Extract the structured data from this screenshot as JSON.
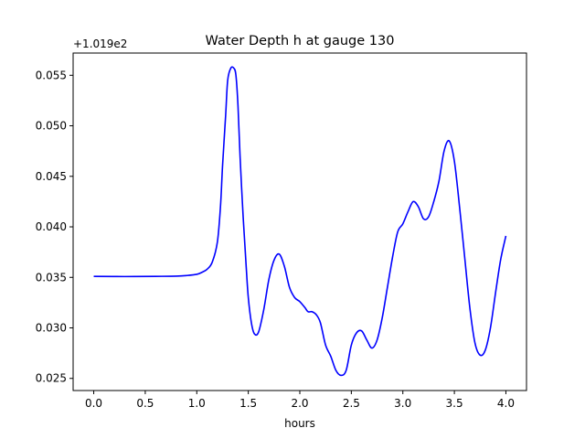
{
  "chart_data": {
    "type": "line",
    "title": "Water Depth h at gauge 130",
    "xlabel": "hours",
    "ylabel": "",
    "y_offset_label": "+1.019e2",
    "xlim": [
      -0.2,
      4.2
    ],
    "ylim": [
      0.0238,
      0.0572
    ],
    "xticks": [
      0.0,
      0.5,
      1.0,
      1.5,
      2.0,
      2.5,
      3.0,
      3.5,
      4.0
    ],
    "xtick_labels": [
      "0.0",
      "0.5",
      "1.0",
      "1.5",
      "2.0",
      "2.5",
      "3.0",
      "3.5",
      "4.0"
    ],
    "yticks": [
      0.025,
      0.03,
      0.035,
      0.04,
      0.045,
      0.05,
      0.055
    ],
    "ytick_labels": [
      "0.025",
      "0.030",
      "0.035",
      "0.040",
      "0.045",
      "0.050",
      "0.055"
    ],
    "grid": false,
    "series": [
      {
        "color": "#0000ff",
        "x": [
          0.0,
          0.3,
          0.6,
          0.8,
          0.9,
          1.0,
          1.05,
          1.1,
          1.15,
          1.2,
          1.23,
          1.25,
          1.28,
          1.3,
          1.33,
          1.36,
          1.38,
          1.4,
          1.42,
          1.45,
          1.48,
          1.5,
          1.53,
          1.56,
          1.6,
          1.65,
          1.7,
          1.75,
          1.8,
          1.85,
          1.9,
          1.95,
          2.0,
          2.05,
          2.08,
          2.12,
          2.16,
          2.2,
          2.25,
          2.3,
          2.35,
          2.4,
          2.45,
          2.5,
          2.55,
          2.6,
          2.65,
          2.7,
          2.75,
          2.8,
          2.85,
          2.9,
          2.95,
          3.0,
          3.05,
          3.1,
          3.15,
          3.2,
          3.25,
          3.3,
          3.35,
          3.4,
          3.45,
          3.5,
          3.55,
          3.6,
          3.65,
          3.7,
          3.75,
          3.8,
          3.85,
          3.9,
          3.95,
          4.0
        ],
        "y": [
          0.0351,
          0.03508,
          0.0351,
          0.03512,
          0.03518,
          0.0353,
          0.0355,
          0.0358,
          0.0365,
          0.0385,
          0.042,
          0.046,
          0.051,
          0.0545,
          0.0557,
          0.0557,
          0.055,
          0.052,
          0.047,
          0.041,
          0.036,
          0.033,
          0.0305,
          0.0294,
          0.0296,
          0.0318,
          0.0348,
          0.0367,
          0.0373,
          0.0361,
          0.034,
          0.033,
          0.0326,
          0.032,
          0.0316,
          0.0316,
          0.0313,
          0.0305,
          0.0283,
          0.0272,
          0.0258,
          0.0253,
          0.0258,
          0.0283,
          0.0295,
          0.0297,
          0.0288,
          0.028,
          0.0288,
          0.031,
          0.034,
          0.037,
          0.0395,
          0.0403,
          0.0415,
          0.0425,
          0.042,
          0.0408,
          0.041,
          0.0425,
          0.0445,
          0.0475,
          0.0485,
          0.0465,
          0.042,
          0.037,
          0.032,
          0.0285,
          0.0273,
          0.0278,
          0.03,
          0.0335,
          0.0368,
          0.0391
        ]
      }
    ]
  }
}
